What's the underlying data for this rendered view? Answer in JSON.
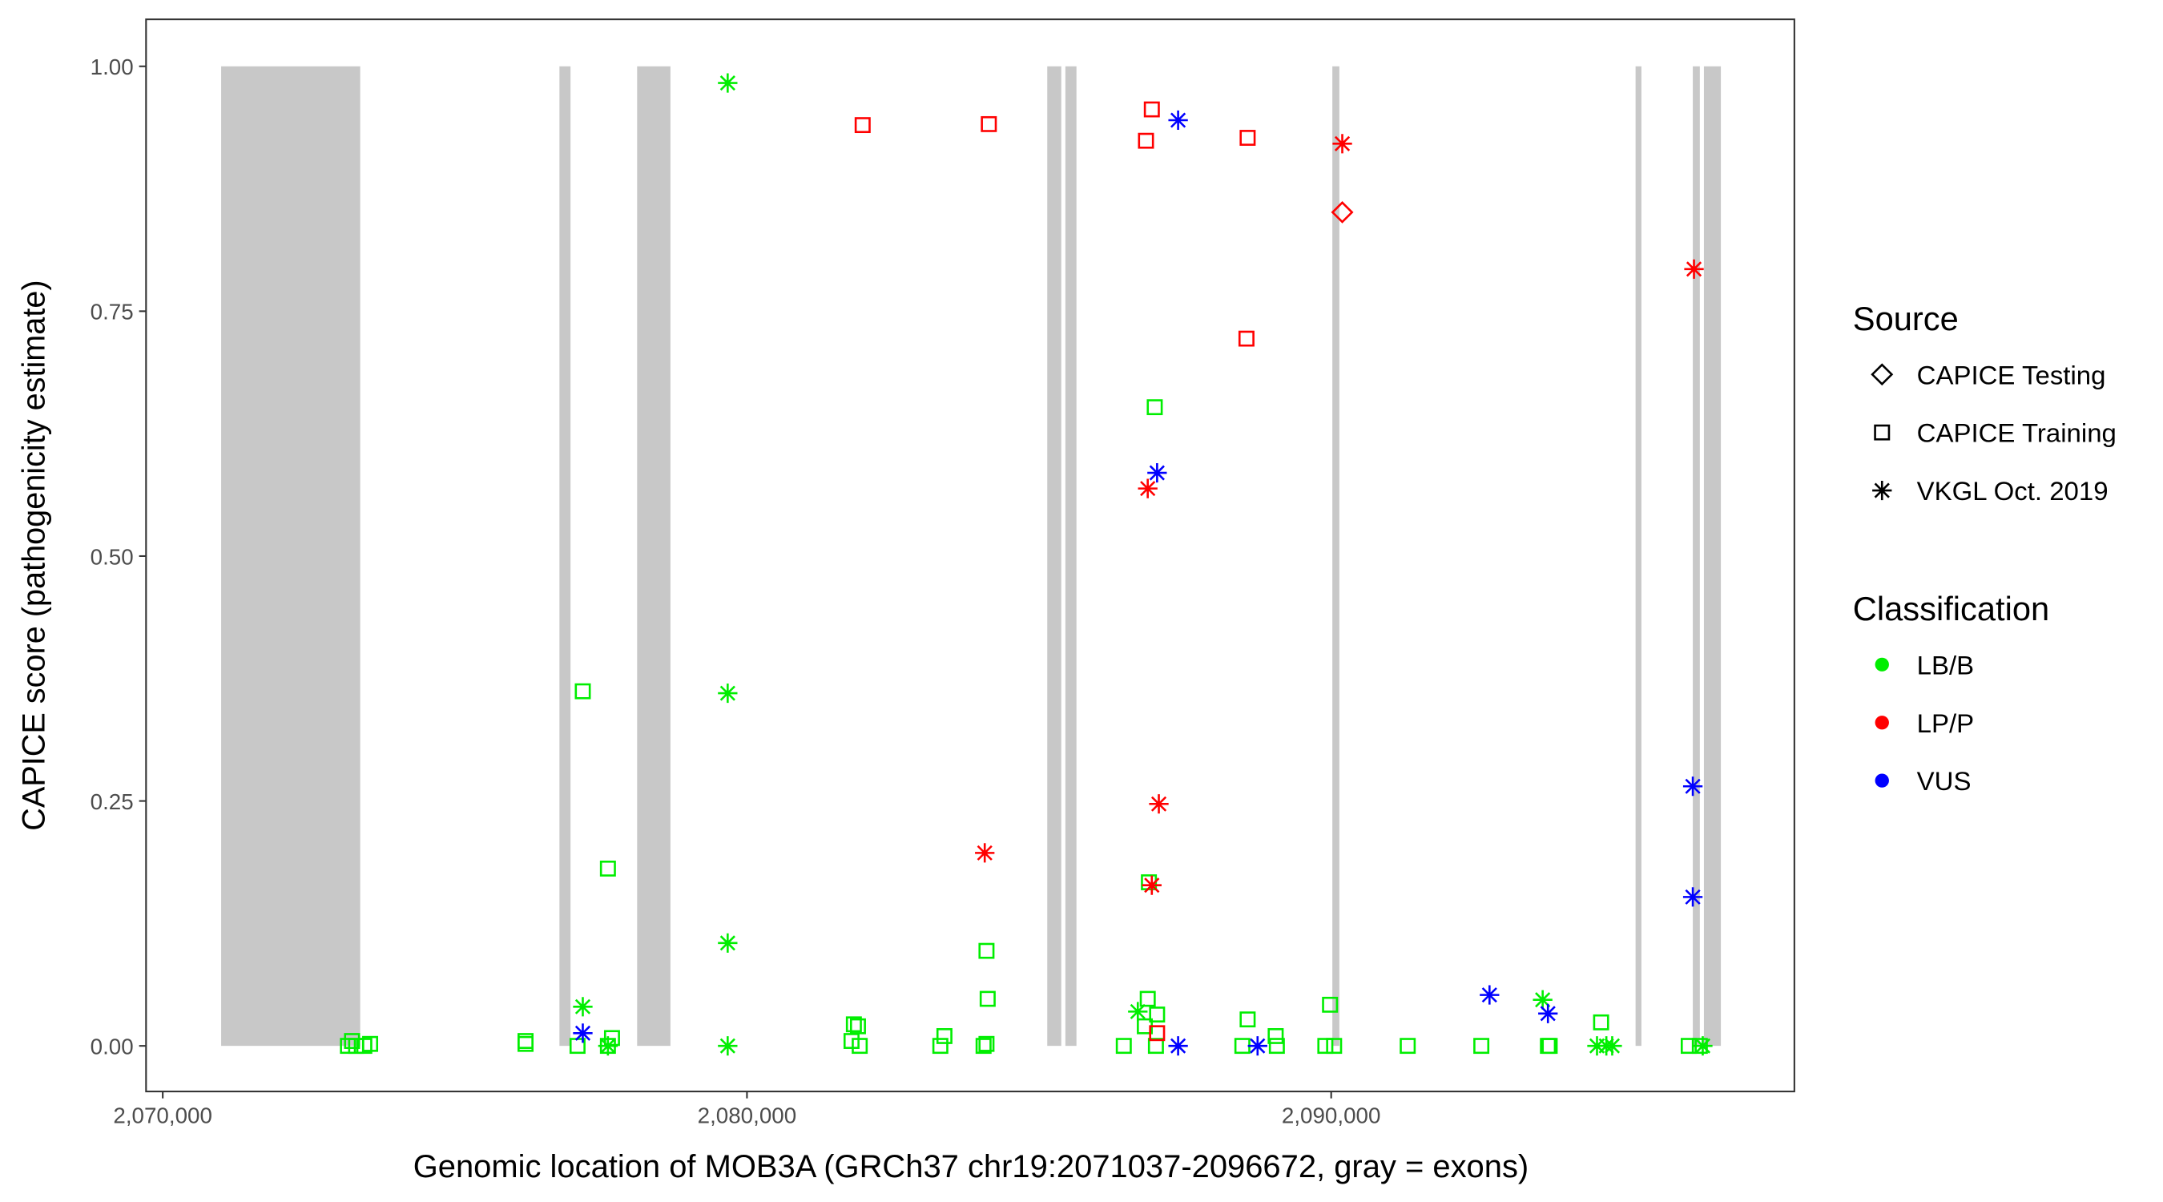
{
  "chart_data": {
    "type": "scatter",
    "title": "",
    "xlabel": "Genomic location of MOB3A (GRCh37 chr19:2071037-2096672, gray = exons)",
    "ylabel": "CAPICE score (pathogenicity estimate)",
    "xlim": [
      2069700,
      2097900
    ],
    "ylim": [
      -0.046,
      1.046
    ],
    "grid": false,
    "x_ticks": [
      2070000,
      2080000,
      2090000
    ],
    "x_tick_labels": [
      "2,070,000",
      "2,080,000",
      "2,090,000"
    ],
    "y_ticks": [
      0,
      0.25,
      0.5,
      0.75,
      1.0
    ],
    "y_tick_labels": [
      "0.00",
      "0.25",
      "0.50",
      "0.75",
      "1.00"
    ],
    "exons": [
      [
        2071000,
        2073380
      ],
      [
        2076790,
        2076980
      ],
      [
        2078120,
        2078690
      ],
      [
        2085140,
        2085380
      ],
      [
        2085450,
        2085640
      ],
      [
        2090020,
        2090140
      ],
      [
        2095210,
        2095310
      ],
      [
        2096190,
        2096310
      ],
      [
        2096380,
        2096670
      ]
    ],
    "colors": {
      "LB/B": "#00ee00",
      "LP/P": "#ff0000",
      "VUS": "#0000ff",
      "exon": "#c8c8c8"
    },
    "legend": {
      "position": "right",
      "source_title": "Source",
      "source_items": [
        {
          "label": "CAPICE Testing",
          "shape": "diamond"
        },
        {
          "label": "CAPICE Training",
          "shape": "square"
        },
        {
          "label": "VKGL Oct. 2019",
          "shape": "asterisk"
        }
      ],
      "class_title": "Classification",
      "class_items": [
        {
          "label": "LB/B",
          "color": "#00ee00"
        },
        {
          "label": "LP/P",
          "color": "#ff0000"
        },
        {
          "label": "VUS",
          "color": "#0000ff"
        }
      ]
    },
    "series": [
      {
        "source": "CAPICE Training",
        "class": "LB/B",
        "points": [
          [
            2073170,
            0
          ],
          [
            2073240,
            0.005
          ],
          [
            2073310,
            0
          ],
          [
            2073450,
            0
          ],
          [
            2073550,
            0.002
          ],
          [
            2076210,
            0.002
          ],
          [
            2076210,
            0.005
          ],
          [
            2077100,
            0
          ],
          [
            2077190,
            0.362
          ],
          [
            2077620,
            0.181
          ],
          [
            2077690,
            0.008
          ],
          [
            2077620,
            0
          ],
          [
            2081790,
            0.005
          ],
          [
            2081830,
            0.022
          ],
          [
            2081900,
            0.02
          ],
          [
            2081930,
            0
          ],
          [
            2083310,
            0
          ],
          [
            2083380,
            0.01
          ],
          [
            2084050,
            0
          ],
          [
            2084100,
            0.002
          ],
          [
            2084100,
            0.097
          ],
          [
            2084120,
            0.048
          ],
          [
            2086450,
            0
          ],
          [
            2086860,
            0.048
          ],
          [
            2086810,
            0.02
          ],
          [
            2086880,
            0.167
          ],
          [
            2086980,
            0.652
          ],
          [
            2087020,
            0.032
          ],
          [
            2087000,
            0
          ],
          [
            2088480,
            0
          ],
          [
            2088570,
            0.027
          ],
          [
            2089050,
            0.01
          ],
          [
            2089070,
            0
          ],
          [
            2089900,
            0
          ],
          [
            2089980,
            0.042
          ],
          [
            2090050,
            0
          ],
          [
            2091310,
            0
          ],
          [
            2092570,
            0
          ],
          [
            2093710,
            0
          ],
          [
            2093740,
            0
          ],
          [
            2094620,
            0.024
          ],
          [
            2096120,
            0
          ],
          [
            2096310,
            0
          ]
        ]
      },
      {
        "source": "VKGL Oct. 2019",
        "class": "LB/B",
        "points": [
          [
            2079670,
            0.983
          ],
          [
            2079670,
            0.36
          ],
          [
            2079670,
            0.105
          ],
          [
            2079670,
            0
          ],
          [
            2077190,
            0.04
          ],
          [
            2077620,
            0
          ],
          [
            2086690,
            0.035
          ],
          [
            2093620,
            0.047
          ],
          [
            2094550,
            0
          ],
          [
            2094810,
            0
          ],
          [
            2094710,
            0
          ],
          [
            2096360,
            0
          ]
        ]
      },
      {
        "source": "CAPICE Training",
        "class": "LP/P",
        "points": [
          [
            2081980,
            0.94
          ],
          [
            2084140,
            0.941
          ],
          [
            2086930,
            0.956
          ],
          [
            2086830,
            0.924
          ],
          [
            2088570,
            0.927
          ],
          [
            2088550,
            0.722
          ],
          [
            2087020,
            0.013
          ]
        ]
      },
      {
        "source": "VKGL Oct. 2019",
        "class": "LP/P",
        "points": [
          [
            2090190,
            0.921
          ],
          [
            2096210,
            0.793
          ],
          [
            2086860,
            0.569
          ],
          [
            2087050,
            0.247
          ],
          [
            2084070,
            0.197
          ],
          [
            2086930,
            0.164
          ]
        ]
      },
      {
        "source": "CAPICE Testing",
        "class": "LP/P",
        "points": [
          [
            2090190,
            0.851
          ]
        ]
      },
      {
        "source": "VKGL Oct. 2019",
        "class": "VUS",
        "points": [
          [
            2087380,
            0.945
          ],
          [
            2087020,
            0.585
          ],
          [
            2096190,
            0.265
          ],
          [
            2096190,
            0.152
          ],
          [
            2092710,
            0.052
          ],
          [
            2093710,
            0.033
          ],
          [
            2077190,
            0.013
          ],
          [
            2087380,
            0
          ],
          [
            2088740,
            0
          ]
        ]
      }
    ]
  }
}
